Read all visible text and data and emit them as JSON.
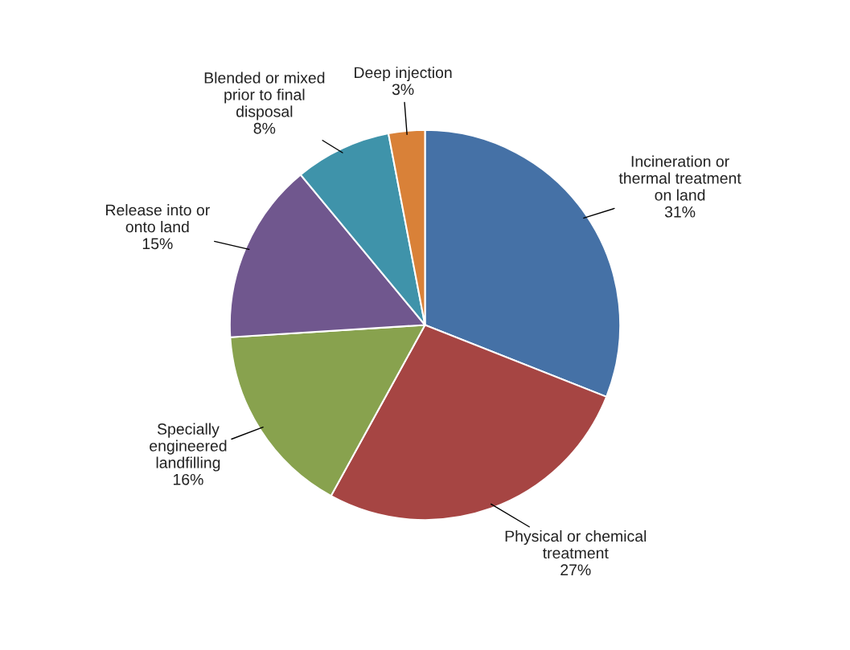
{
  "chart_data": {
    "type": "pie",
    "categories": [
      "Incineration or\nthermal treatment\non land",
      "Physical or chemical\ntreatment",
      "Specially\nengineered\nlandfilling",
      "Release into or\nonto land",
      "Blended or mixed\nprior to final\ndisposal",
      "Deep injection"
    ],
    "values": [
      31,
      27,
      16,
      15,
      8,
      3
    ],
    "value_labels": [
      "31%",
      "27%",
      "16%",
      "15%",
      "8%",
      "3%"
    ],
    "colors": [
      "#4571a6",
      "#a64543",
      "#88a24e",
      "#70578e",
      "#3f93aa",
      "#d98138"
    ],
    "legend": false
  }
}
